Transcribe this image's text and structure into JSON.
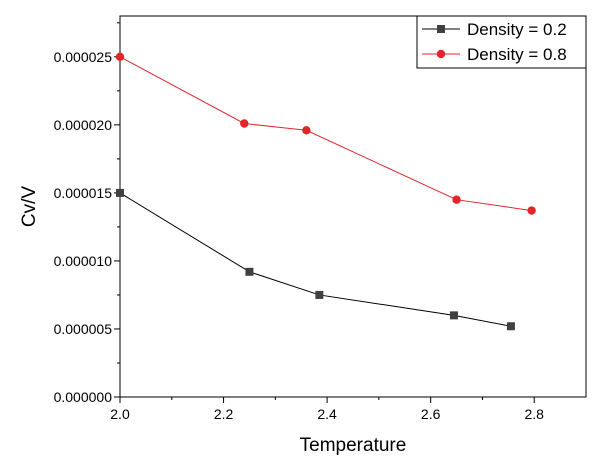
{
  "chart_data": {
    "type": "line",
    "title": "",
    "xlabel": "Temperature",
    "ylabel": "Cv/V",
    "xlim": [
      2.0,
      2.9
    ],
    "ylim": [
      0.0,
      2.8e-05
    ],
    "x_ticks": [
      2.0,
      2.2,
      2.4,
      2.6,
      2.8
    ],
    "x_tick_labels": [
      "2.0",
      "2.2",
      "2.4",
      "2.6",
      "2.8"
    ],
    "x_minor_ticks": [
      2.1,
      2.3,
      2.5,
      2.7
    ],
    "y_ticks": [
      0.0,
      5e-06,
      1e-05,
      1.5e-05,
      2e-05,
      2.5e-05
    ],
    "y_tick_labels": [
      "0.000000",
      "0.000005",
      "0.000010",
      "0.000015",
      "0.000020",
      "0.000025"
    ],
    "y_minor_ticks": [
      2.5e-06,
      7.5e-06,
      1.25e-05,
      1.75e-05,
      2.25e-05,
      2.75e-05
    ],
    "grid": false,
    "legend_position": "top-right",
    "series": [
      {
        "name": "Density = 0.2",
        "color": "#000000",
        "marker_color": "#404040",
        "marker": "square",
        "x": [
          2.0,
          2.25,
          2.385,
          2.645,
          2.755
        ],
        "y": [
          1.5e-05,
          9.2e-06,
          7.5e-06,
          6e-06,
          5.2e-06
        ]
      },
      {
        "name": "Density = 0.8",
        "color": "#e0262b",
        "marker_color": "#e0262b",
        "marker": "circle",
        "x": [
          2.0,
          2.24,
          2.36,
          2.65,
          2.795
        ],
        "y": [
          2.5e-05,
          2.01e-05,
          1.96e-05,
          1.45e-05,
          1.37e-05
        ]
      }
    ]
  }
}
